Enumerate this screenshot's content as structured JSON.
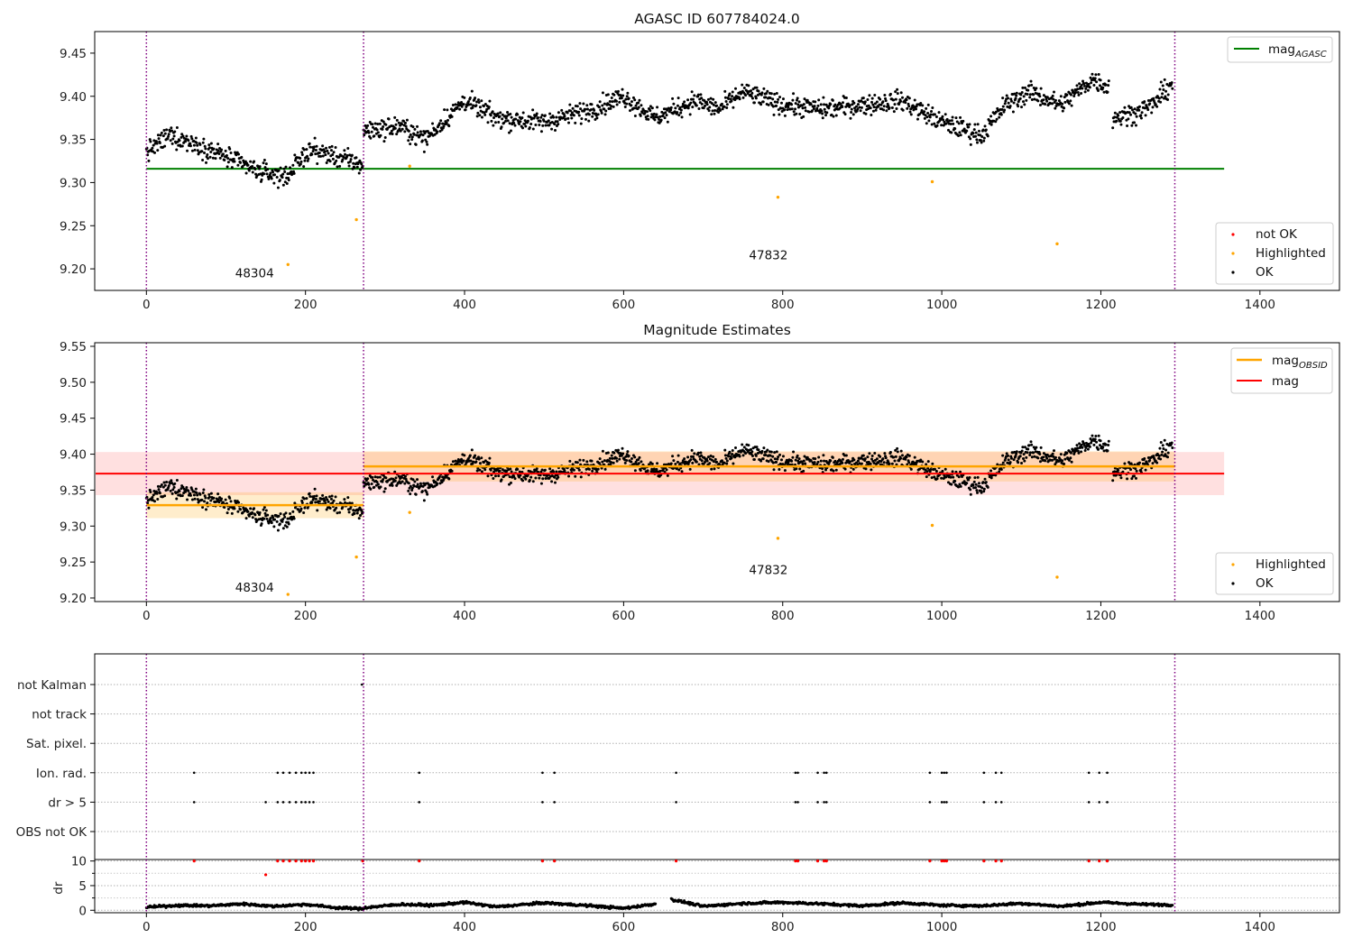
{
  "chart_data": [
    {
      "type": "scatter",
      "title": "AGASC ID 607784024.0",
      "xlim": [
        -65,
        1500
      ],
      "ylim": [
        9.175,
        9.475
      ],
      "x_ticks": [
        0,
        200,
        400,
        600,
        800,
        1000,
        1200,
        1400
      ],
      "y_ticks": [
        9.2,
        9.25,
        9.3,
        9.35,
        9.4,
        9.45
      ],
      "vlines": [
        0,
        273,
        1293
      ],
      "annotations": [
        {
          "text": "48304",
          "x": 136,
          "y": 9.19
        },
        {
          "text": "47832",
          "x": 782,
          "y": 9.211
        }
      ],
      "hlines": [
        {
          "name": "mag_AGASC",
          "label": "mag",
          "sub": "AGASC",
          "y": 9.316,
          "color": "#008000"
        }
      ],
      "legend_lines_position": "top-right",
      "legend_points_position": "bottom-right",
      "legend_points": [
        {
          "label": "not OK",
          "color": "#ff0000"
        },
        {
          "label": "Highlighted",
          "color": "#ffa500"
        },
        {
          "label": "OK",
          "color": "#000000"
        }
      ],
      "highlighted_points": [
        {
          "x": 178,
          "y": 9.205
        },
        {
          "x": 264,
          "y": 9.257
        },
        {
          "x": 331,
          "y": 9.319
        },
        {
          "x": 794,
          "y": 9.283
        },
        {
          "x": 988,
          "y": 9.301
        },
        {
          "x": 1145,
          "y": 9.229
        }
      ],
      "ok_segments": [
        {
          "x": [
            0,
            30,
            60,
            100,
            140,
            175,
            205,
            240,
            272
          ],
          "y": [
            9.335,
            9.355,
            9.345,
            9.33,
            9.313,
            9.307,
            9.338,
            9.33,
            9.32
          ]
        },
        {
          "x": [
            273,
            320,
            350,
            400,
            440,
            500,
            560,
            600,
            640,
            690,
            720,
            750,
            800,
            850,
            900,
            950,
            1000,
            1050,
            1080,
            1110,
            1150,
            1190,
            1210
          ],
          "y": [
            9.36,
            9.365,
            9.35,
            9.395,
            9.375,
            9.37,
            9.385,
            9.4,
            9.375,
            9.395,
            9.385,
            9.405,
            9.39,
            9.385,
            9.39,
            9.395,
            9.37,
            9.355,
            9.39,
            9.405,
            9.39,
            9.42,
            9.41
          ]
        },
        {
          "x": [
            1215,
            1240,
            1265,
            1290
          ],
          "y": [
            9.375,
            9.38,
            9.39,
            9.415
          ]
        }
      ]
    },
    {
      "type": "scatter",
      "title": "Magnitude Estimates",
      "xlim": [
        -65,
        1500
      ],
      "ylim": [
        9.195,
        9.555
      ],
      "x_ticks": [
        0,
        200,
        400,
        600,
        800,
        1000,
        1200,
        1400
      ],
      "y_ticks": [
        9.2,
        9.25,
        9.3,
        9.35,
        9.4,
        9.45,
        9.5,
        9.55
      ],
      "vlines": [
        0,
        273,
        1293
      ],
      "annotations": [
        {
          "text": "48304",
          "x": 136,
          "y": 9.209
        },
        {
          "text": "47832",
          "x": 782,
          "y": 9.233
        }
      ],
      "mag_band": {
        "y": 9.373,
        "lo": 9.343,
        "hi": 9.403,
        "x_end": 1355
      },
      "obsid_bands": [
        {
          "x": [
            0,
            273
          ],
          "y": 9.329,
          "lo": 9.311,
          "hi": 9.347
        },
        {
          "x": [
            273,
            1293
          ],
          "y": 9.383,
          "lo": 9.362,
          "hi": 9.404
        }
      ],
      "legend_lines": [
        {
          "name": "mag_OBSID",
          "label": "mag",
          "sub": "OBSID",
          "color": "#ffa500"
        },
        {
          "name": "mag",
          "label": "mag",
          "sub": "",
          "color": "#ff0000"
        }
      ],
      "legend_lines_position": "top-right",
      "legend_points_position": "bottom-right",
      "legend_points": [
        {
          "label": "Highlighted",
          "color": "#ffa500"
        },
        {
          "label": "OK",
          "color": "#000000"
        }
      ]
    },
    {
      "type": "scatter",
      "xlim": [
        -65,
        1500
      ],
      "x_ticks": [
        0,
        200,
        400,
        600,
        800,
        1000,
        1200,
        1400
      ],
      "vlines": [
        0,
        273,
        1293
      ],
      "flag_rows": [
        "not Kalman",
        "not track",
        "Sat. pixel.",
        "Ion. rad.",
        "dr > 5",
        "OBS not OK"
      ],
      "flag_points": [
        {
          "row": "not Kalman",
          "x": [
            271
          ]
        },
        {
          "row": "Ion. rad.",
          "x": [
            60,
            165,
            172,
            180,
            188,
            195,
            200,
            205,
            210,
            343,
            498,
            513,
            666,
            816,
            819,
            844,
            852,
            855,
            985,
            1000,
            1003,
            1006,
            1053,
            1068,
            1075,
            1185,
            1198,
            1208
          ]
        },
        {
          "row": "dr > 5",
          "x": [
            60,
            150,
            165,
            172,
            180,
            188,
            195,
            200,
            205,
            210,
            343,
            498,
            513,
            666,
            816,
            819,
            844,
            852,
            855,
            985,
            1000,
            1003,
            1006,
            1053,
            1068,
            1075,
            1185,
            1198,
            1208
          ]
        }
      ],
      "dr_panel": {
        "ylabel": "dr",
        "y_ticks": [
          0,
          5,
          10
        ],
        "ylim": [
          -0.5,
          10.3
        ],
        "red_points": {
          "x": [
            60,
            165,
            172,
            180,
            188,
            195,
            200,
            205,
            210,
            272,
            343,
            498,
            513,
            666,
            816,
            819,
            844,
            852,
            855,
            985,
            1000,
            1003,
            1006,
            1053,
            1068,
            1075,
            1185,
            1198,
            1208
          ],
          "y": 10
        },
        "red_extra": [
          {
            "x": 150,
            "y": 7.2
          }
        ],
        "baseline_segments": [
          {
            "x": [
              0,
              40,
              80,
              120,
              160,
              200,
              240,
              272
            ],
            "y": [
              0.6,
              1.0,
              0.9,
              1.3,
              0.8,
              1.2,
              0.5,
              0.3
            ]
          },
          {
            "x": [
              273,
              320,
              360,
              400,
              440,
              500,
              560,
              600,
              640
            ],
            "y": [
              0.5,
              1.2,
              1.0,
              1.6,
              0.7,
              1.5,
              0.9,
              0.4,
              1.3
            ]
          },
          {
            "x": [
              660,
              700,
              750,
              800,
              850,
              900,
              950,
              1000,
              1050,
              1100,
              1150,
              1200,
              1250,
              1290
            ],
            "y": [
              2.2,
              0.8,
              1.4,
              1.6,
              1.3,
              0.9,
              1.5,
              1.0,
              0.9,
              1.4,
              0.8,
              1.6,
              1.2,
              1.1
            ]
          }
        ]
      }
    }
  ]
}
